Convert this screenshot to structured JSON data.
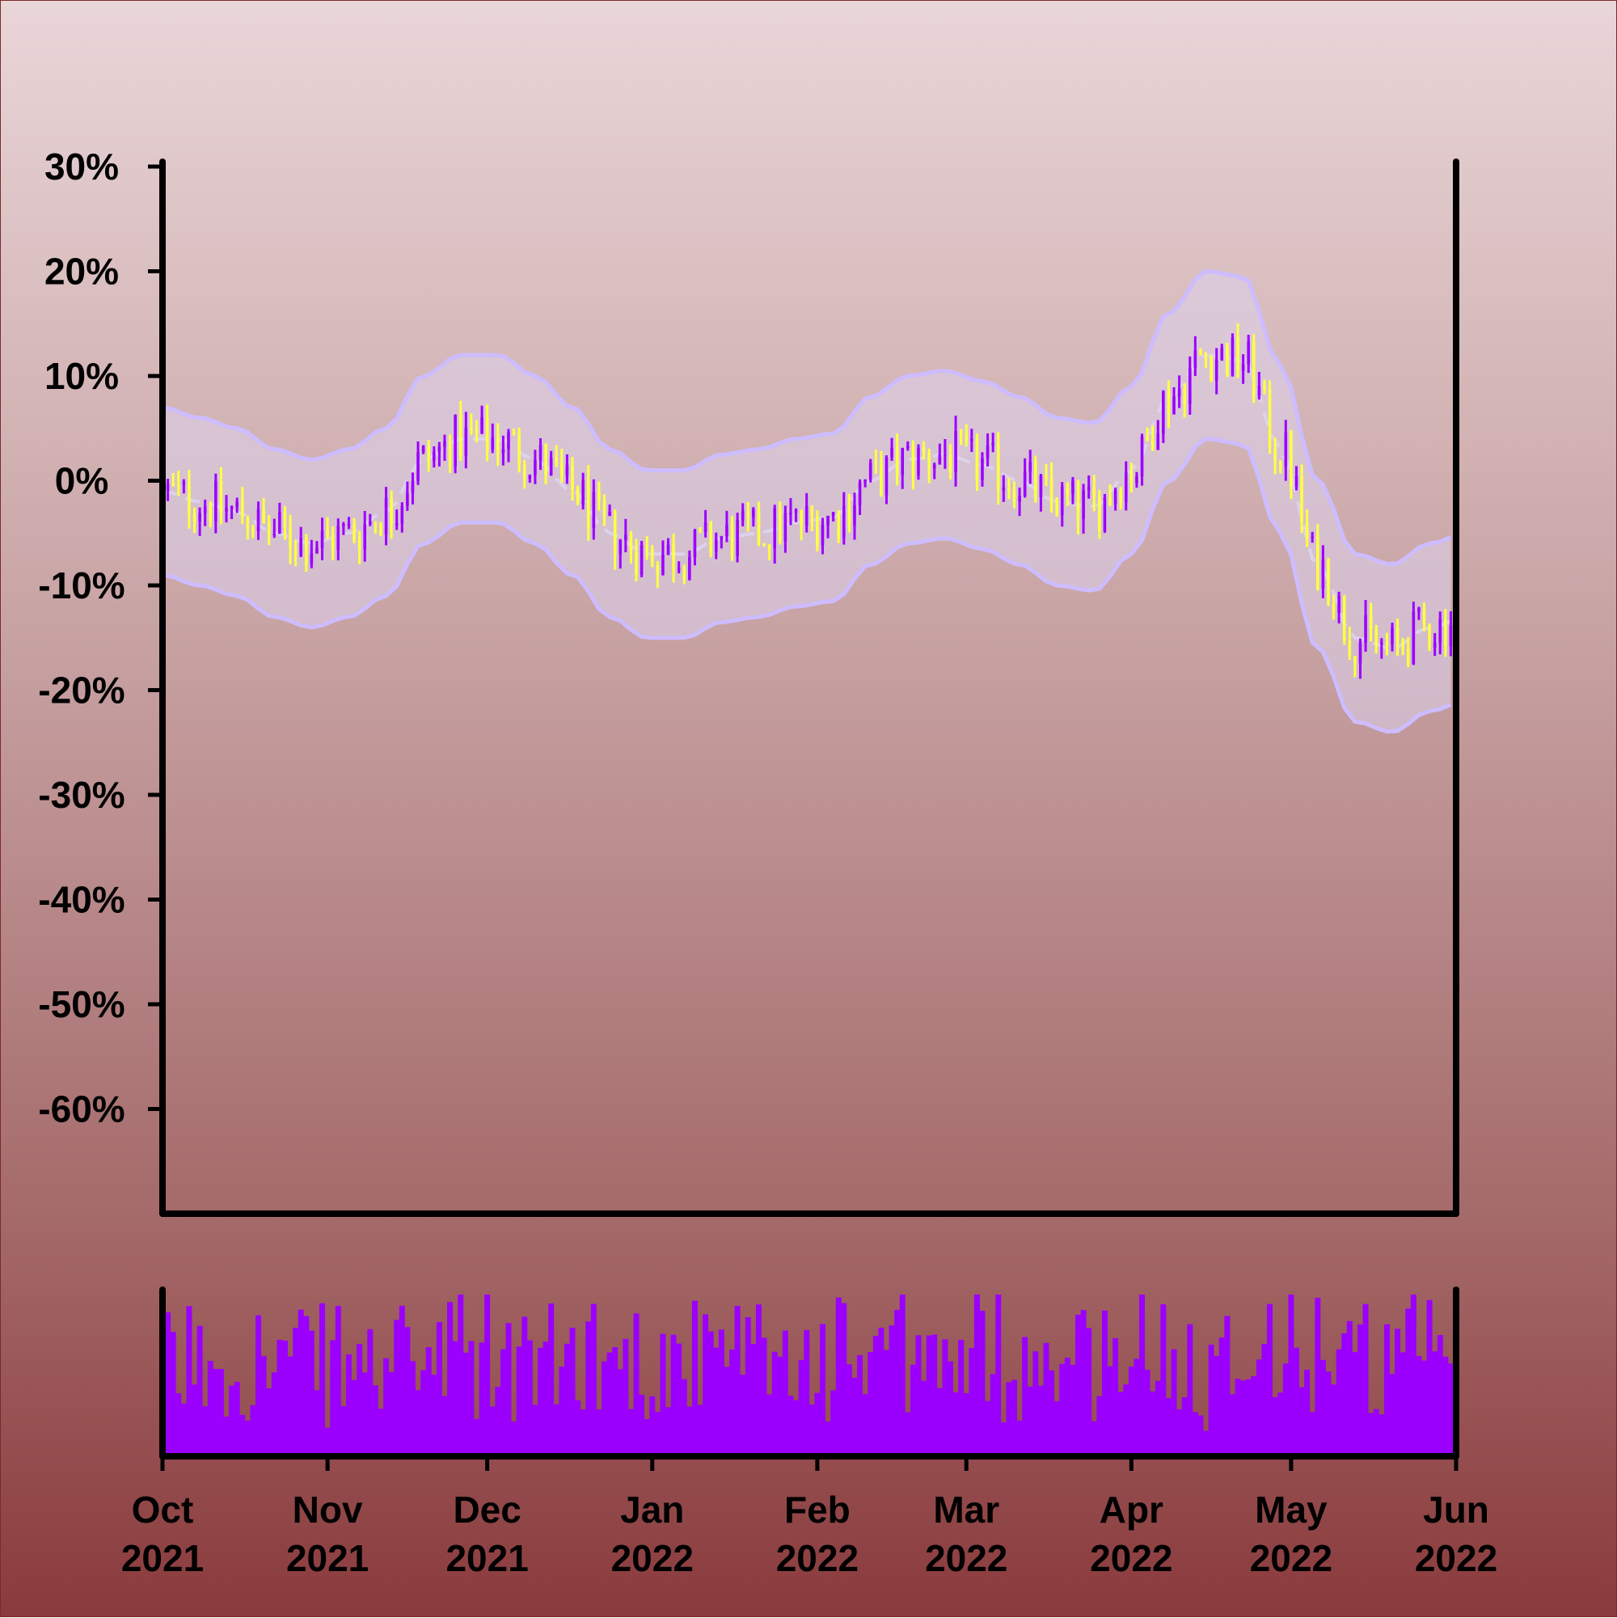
{
  "background": {
    "top": "#e9d6d8",
    "bottom": "#8a3a3c"
  },
  "colors": {
    "up": "#9b00ff",
    "down": "#ffff44",
    "band": "#cdbcff",
    "band_fill": "#dcd2ec",
    "volume": "#9b00ff",
    "axis": "#000000"
  },
  "chart_data": {
    "type": "candlestick",
    "x_range": [
      "2021-10-01",
      "2022-06-01"
    ],
    "x_ticks": [
      {
        "date": "2021-10-01",
        "month": "Oct",
        "year": "2021"
      },
      {
        "date": "2021-11-01",
        "month": "Nov",
        "year": "2021"
      },
      {
        "date": "2021-12-01",
        "month": "Dec",
        "year": "2021"
      },
      {
        "date": "2022-01-01",
        "month": "Jan",
        "year": "2022"
      },
      {
        "date": "2022-02-01",
        "month": "Feb",
        "year": "2022"
      },
      {
        "date": "2022-03-01",
        "month": "Mar",
        "year": "2022"
      },
      {
        "date": "2022-04-01",
        "month": "Apr",
        "year": "2022"
      },
      {
        "date": "2022-05-01",
        "month": "May",
        "year": "2022"
      },
      {
        "date": "2022-06-01",
        "month": "Jun",
        "year": "2022"
      }
    ],
    "ylim": [
      -70,
      30
    ],
    "y_ticks": [
      {
        "value": 30,
        "label": "30%"
      },
      {
        "value": 20,
        "label": "20%"
      },
      {
        "value": 10,
        "label": "10%"
      },
      {
        "value": 0,
        "label": "0%"
      },
      {
        "value": -10,
        "label": "-10%"
      },
      {
        "value": -20,
        "label": "-20%"
      },
      {
        "value": -30,
        "label": "-30%"
      },
      {
        "value": -40,
        "label": "-40%"
      },
      {
        "value": -50,
        "label": "-50%"
      },
      {
        "value": -60,
        "label": "-60%"
      }
    ],
    "trend": [
      [
        "2021-10-01",
        -1
      ],
      [
        "2021-10-08",
        -2
      ],
      [
        "2021-10-15",
        -3
      ],
      [
        "2021-10-22",
        -5
      ],
      [
        "2021-10-29",
        -6
      ],
      [
        "2021-11-05",
        -5
      ],
      [
        "2021-11-12",
        -3
      ],
      [
        "2021-11-19",
        2
      ],
      [
        "2021-11-26",
        4
      ],
      [
        "2021-12-03",
        4
      ],
      [
        "2021-12-10",
        2
      ],
      [
        "2021-12-17",
        -1
      ],
      [
        "2021-12-24",
        -5
      ],
      [
        "2021-12-31",
        -7
      ],
      [
        "2022-01-07",
        -7
      ],
      [
        "2022-01-14",
        -5.5
      ],
      [
        "2022-01-21",
        -5
      ],
      [
        "2022-01-28",
        -4
      ],
      [
        "2022-02-04",
        -3.5
      ],
      [
        "2022-02-11",
        0
      ],
      [
        "2022-02-18",
        2
      ],
      [
        "2022-02-25",
        2.5
      ],
      [
        "2022-03-04",
        1.5
      ],
      [
        "2022-03-11",
        0
      ],
      [
        "2022-03-18",
        -2
      ],
      [
        "2022-03-25",
        -2.5
      ],
      [
        "2022-04-01",
        1
      ],
      [
        "2022-04-08",
        8
      ],
      [
        "2022-04-15",
        12
      ],
      [
        "2022-04-22",
        11.5
      ],
      [
        "2022-04-29",
        3
      ],
      [
        "2022-05-06",
        -8
      ],
      [
        "2022-05-13",
        -15
      ],
      [
        "2022-05-20",
        -16
      ],
      [
        "2022-05-27",
        -14
      ],
      [
        "2022-06-03",
        -13
      ],
      [
        "2022-06-10",
        -12
      ]
    ],
    "band_width": 8,
    "noise": 2.5,
    "candles_per_day": 1,
    "volume_range": [
      0,
      100
    ]
  }
}
